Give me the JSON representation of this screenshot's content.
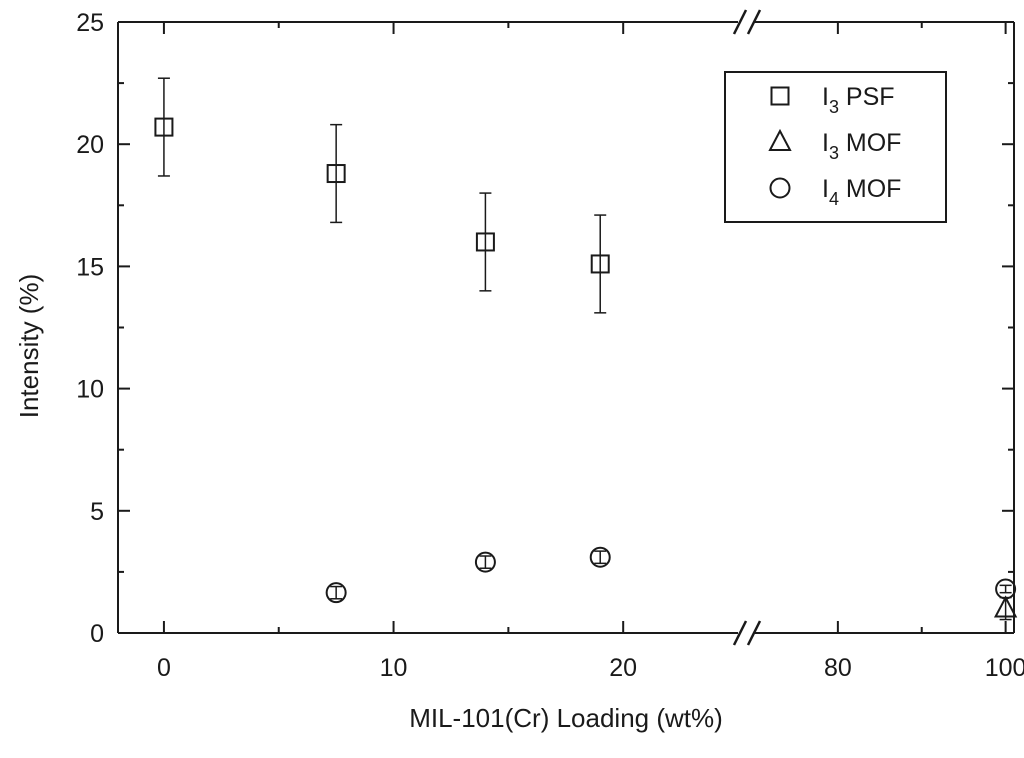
{
  "chart_data": {
    "type": "scatter",
    "xlabel": "MIL-101(Cr) Loading (wt%)",
    "ylabel": "Intensity (%)",
    "ylim": [
      0,
      25
    ],
    "yticks": [
      0,
      5,
      10,
      15,
      20,
      25
    ],
    "x_axis": {
      "broken": true,
      "segments": [
        {
          "range": [
            -2,
            25
          ],
          "ticks": [
            0,
            10,
            20
          ]
        },
        {
          "range": [
            70,
            101
          ],
          "ticks": [
            80,
            100
          ]
        }
      ]
    },
    "legend": {
      "placement": "top-right"
    },
    "grid": false,
    "series": [
      {
        "name": "I3 PSF",
        "label_main": "I",
        "label_sub": "3",
        "label_rest": " PSF",
        "marker": "square",
        "points": [
          {
            "x": 0,
            "y": 20.7,
            "err": 2.0
          },
          {
            "x": 7.5,
            "y": 18.8,
            "err": 2.0
          },
          {
            "x": 14,
            "y": 16.0,
            "err": 2.0
          },
          {
            "x": 19,
            "y": 15.1,
            "err": 2.0
          }
        ]
      },
      {
        "name": "I3 MOF",
        "label_main": "I",
        "label_sub": "3",
        "label_rest": " MOF",
        "marker": "triangle",
        "points": [
          {
            "x": 100,
            "y": 1.0,
            "err": 0.45
          }
        ]
      },
      {
        "name": "I4 MOF",
        "label_main": "I",
        "label_sub": "4",
        "label_rest": " MOF",
        "marker": "circle",
        "points": [
          {
            "x": 7.5,
            "y": 1.65,
            "err": 0.25
          },
          {
            "x": 14,
            "y": 2.9,
            "err": 0.25
          },
          {
            "x": 19,
            "y": 3.1,
            "err": 0.25
          },
          {
            "x": 100,
            "y": 1.8,
            "err": 0.15
          }
        ]
      }
    ]
  }
}
